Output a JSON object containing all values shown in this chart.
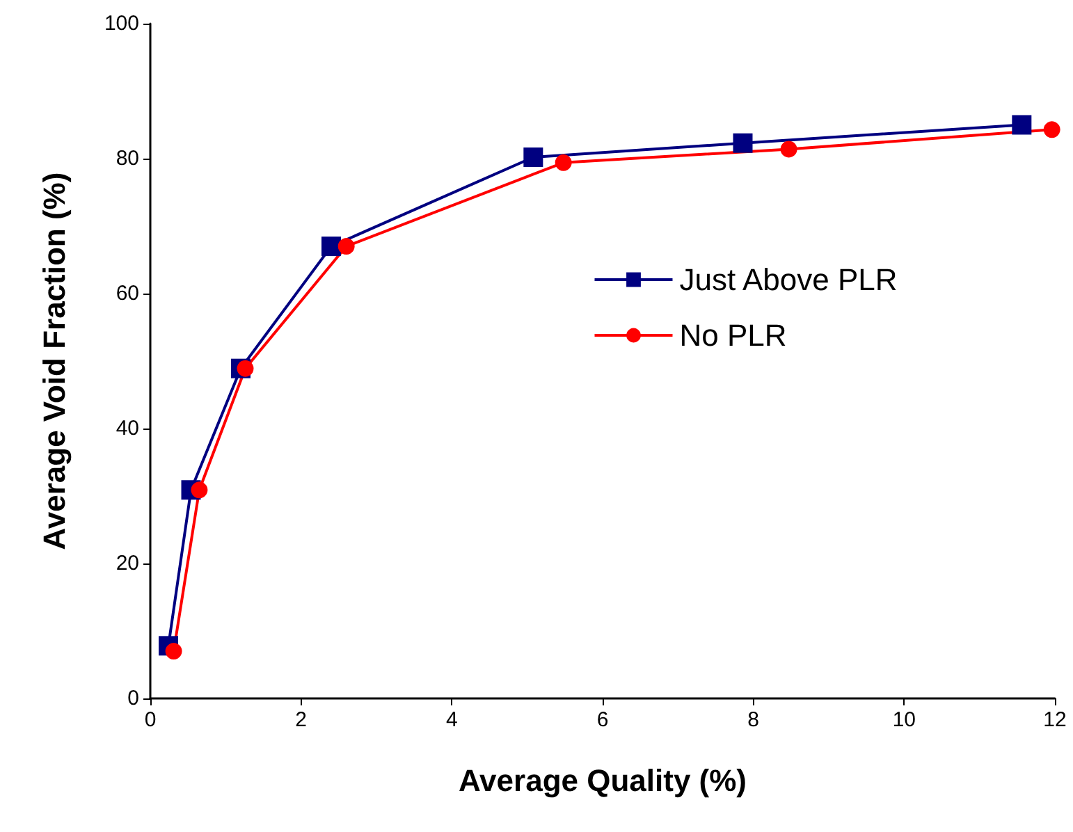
{
  "chart_data": {
    "type": "line",
    "xlabel": "Average Quality (%)",
    "ylabel": "Average Void Fraction (%)",
    "xlim": [
      0,
      12
    ],
    "xticks": [
      0,
      2,
      4,
      6,
      8,
      10,
      12
    ],
    "ylim": [
      0,
      100
    ],
    "yticks": [
      0,
      20,
      40,
      60,
      80,
      100
    ],
    "grid": false,
    "legend": "right",
    "line_style": "solid",
    "series": [
      {
        "name": "Just Above PLR",
        "color": "#000080",
        "marker": "square",
        "x": [
          0.24,
          0.54,
          1.2,
          2.4,
          5.08,
          7.86,
          11.56
        ],
        "values": [
          7.8,
          30.9,
          48.9,
          67.0,
          80.2,
          82.3,
          85.0
        ]
      },
      {
        "name": "No PLR",
        "color": "#ff0000",
        "marker": "circle",
        "x": [
          0.31,
          0.65,
          1.26,
          2.6,
          5.48,
          8.47,
          11.96
        ],
        "values": [
          7.0,
          30.9,
          48.9,
          67.0,
          79.4,
          81.4,
          84.3
        ]
      }
    ]
  }
}
